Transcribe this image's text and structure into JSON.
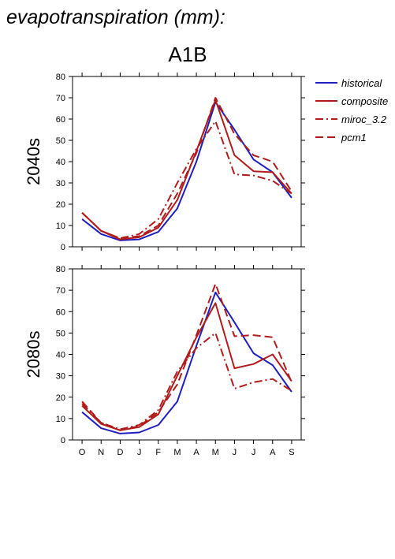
{
  "figure": {
    "title": "evapotranspiration (mm):",
    "scenario": "A1B"
  },
  "colors": {
    "historical": "#1f1fbf",
    "composite": "#b01c1c",
    "miroc_3.2": "#b01c1c",
    "pcm1": "#b01c1c"
  },
  "legend": [
    {
      "label": "historical",
      "style": "solid",
      "color": "#1f1fbf"
    },
    {
      "label": "composite",
      "style": "solid",
      "color": "#b01c1c"
    },
    {
      "label": "miroc_3.2",
      "style": "dashdot",
      "color": "#b01c1c"
    },
    {
      "label": "pcm1",
      "style": "dashed",
      "color": "#b01c1c"
    }
  ],
  "chart_data": [
    {
      "type": "line",
      "title": "2040s",
      "categories": [
        "O",
        "N",
        "D",
        "J",
        "F",
        "M",
        "A",
        "M",
        "J",
        "J",
        "A",
        "S"
      ],
      "ylim": [
        0,
        80
      ],
      "yticks": [
        0,
        10,
        20,
        30,
        40,
        50,
        60,
        70,
        80
      ],
      "grid": false,
      "legend_position": "right",
      "series": [
        {
          "name": "historical",
          "style": "solid",
          "values": [
            13,
            6,
            3,
            3.5,
            7,
            18,
            40,
            68,
            55,
            41,
            35,
            23
          ]
        },
        {
          "name": "composite",
          "style": "solid",
          "values": [
            16,
            7.5,
            3.5,
            4.5,
            9,
            22,
            45,
            69,
            43,
            35.5,
            35,
            25
          ]
        },
        {
          "name": "miroc_3.2",
          "style": "dashdot",
          "values": [
            16,
            7.5,
            4,
            6,
            13,
            30,
            46,
            59,
            34,
            33.5,
            31,
            25
          ]
        },
        {
          "name": "pcm1",
          "style": "dashed",
          "values": [
            16,
            7.5,
            4,
            5,
            10,
            25,
            44,
            70,
            53,
            43,
            40,
            26
          ]
        }
      ]
    },
    {
      "type": "line",
      "title": "2080s",
      "categories": [
        "O",
        "N",
        "D",
        "J",
        "F",
        "M",
        "A",
        "M",
        "J",
        "J",
        "A",
        "S"
      ],
      "ylim": [
        0,
        80
      ],
      "yticks": [
        0,
        10,
        20,
        30,
        40,
        50,
        60,
        70,
        80
      ],
      "grid": false,
      "legend_position": "right",
      "series": [
        {
          "name": "historical",
          "style": "solid",
          "values": [
            13,
            5.5,
            3,
            3.5,
            7,
            18,
            44,
            69,
            55,
            40.5,
            35,
            22.5
          ]
        },
        {
          "name": "composite",
          "style": "solid",
          "values": [
            16,
            7.5,
            4.5,
            6,
            12,
            30,
            48,
            64,
            33.5,
            35.5,
            40,
            27.5
          ]
        },
        {
          "name": "miroc_3.2",
          "style": "dashdot",
          "values": [
            17,
            8,
            5,
            7,
            14,
            32,
            43,
            50,
            24,
            27,
            28.5,
            23
          ]
        },
        {
          "name": "pcm1",
          "style": "dashed",
          "values": [
            18,
            8,
            4.5,
            6.5,
            13,
            26,
            49,
            73,
            48.5,
            49,
            48,
            27
          ]
        }
      ]
    }
  ]
}
